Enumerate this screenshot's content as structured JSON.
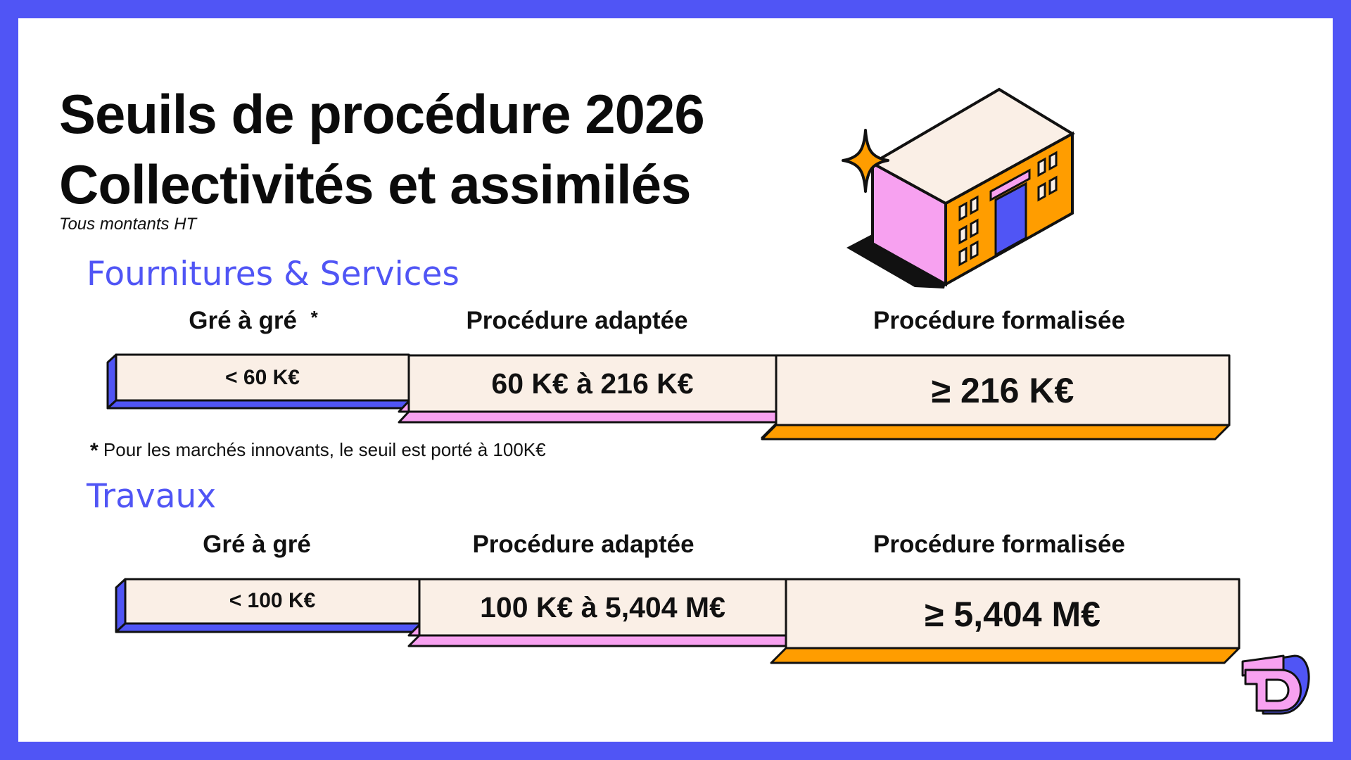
{
  "title_line1": "Seuils de procédure 2026",
  "title_line2": "Collectivités et assimilés",
  "subtitle": "Tous montants HT",
  "colors": {
    "frame": "#5055f5",
    "bar_face": "#faefe6",
    "blue": "#5055f5",
    "pink": "#f7a1f0",
    "orange": "#ff9d00"
  },
  "sections": [
    {
      "name": "Fournitures & Services",
      "columns": [
        {
          "header": "Gré à gré",
          "marker": "*",
          "value": "< 60 K€"
        },
        {
          "header": "Procédure adaptée",
          "value": "60 K€ à 216 K€"
        },
        {
          "header": "Procédure formalisée",
          "value": "≥ 216 K€"
        }
      ],
      "footnote_marker": "*",
      "footnote": "Pour les marchés innovants, le seuil est porté à  100K€"
    },
    {
      "name": "Travaux",
      "columns": [
        {
          "header": "Gré à gré",
          "value": "< 100 K€"
        },
        {
          "header": "Procédure adaptée",
          "value": "100 K€ à 5,404 M€"
        },
        {
          "header": "Procédure formalisée",
          "value": "≥ 5,404 M€"
        }
      ]
    }
  ],
  "icons": {
    "illustration": "building-icon",
    "sparkle": "sparkle-icon",
    "logo": "td-logo-icon"
  }
}
